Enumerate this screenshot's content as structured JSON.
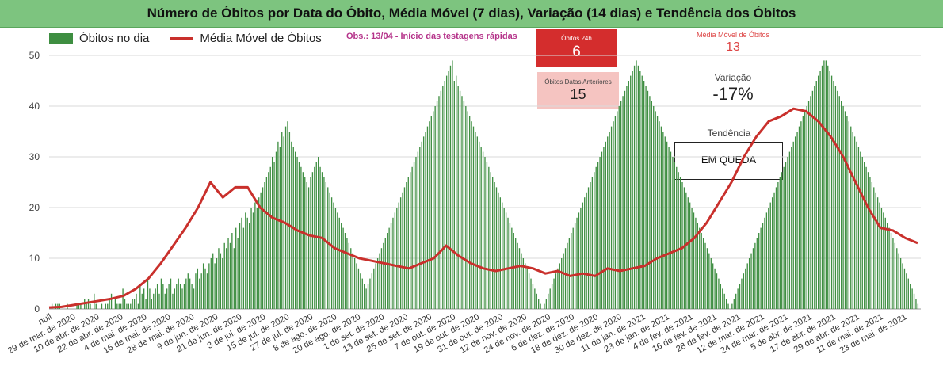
{
  "title": "Número de Óbitos por Data do Óbito, Média Móvel (7 dias), Variação (14 dias) e Tendência dos Óbitos",
  "legend": {
    "bars": "Óbitos no dia",
    "line": "Média Móvel de Óbitos"
  },
  "obs": "Obs.: 13/04 - Início das testagens rápidas",
  "cards": {
    "obitos24h": {
      "label": "Óbitos 24h",
      "value": "6"
    },
    "anteriores": {
      "label": "Óbitos Datas Anteriores",
      "value": "15"
    },
    "media_movel": {
      "label": "Média Móvel de Óbitos",
      "value": "13"
    },
    "variacao": {
      "label": "Variação",
      "value": "-17%"
    },
    "tendencia": {
      "label": "Tendência",
      "value": "EM QUEDA"
    }
  },
  "colors": {
    "bar": "#3e8e41",
    "line": "#c9302c",
    "title_bg": "#7dc47f"
  },
  "chart_data": {
    "type": "bar",
    "title": "Número de Óbitos por Data do Óbito, Média Móvel (7 dias), Variação (14 dias) e Tendência dos Óbitos",
    "xlabel": "",
    "ylabel": "",
    "ylim": [
      0,
      50
    ],
    "yticks": [
      0,
      10,
      20,
      30,
      40,
      50
    ],
    "grid": true,
    "legend_position": "top-left",
    "day_labels": [
      "null",
      "29 de mar. de 2020",
      "10 de abr. de 2020",
      "22 de abr. de 2020",
      "4 de mai. de 2020",
      "16 de mai. de 2020",
      "28 de mai. de 2020",
      "9 de jun. de 2020",
      "21 de jun. de 2020",
      "3 de jul. de 2020",
      "15 de jul. de 2020",
      "27 de jul. de 2020",
      "8 de ago. de 2020",
      "20 de ago. de 2020",
      "1 de set. de 2020",
      "13 de set. de 2020",
      "25 de set. de 2020",
      "7 de out. de 2020",
      "19 de out. de 2020",
      "31 de out. de 2020",
      "12 de nov. de 2020",
      "24 de nov. de 2020",
      "6 de dez. de 2020",
      "18 de dez. de 2020",
      "30 de dez. de 2020",
      "11 de jan. de 2021",
      "23 de jan. de 2021",
      "4 de fev. de 2021",
      "16 de fev. de 2021",
      "28 de fev. de 2021",
      "12 de mar. de 2021",
      "24 de mar. de 2021",
      "5 de abr. de 2021",
      "17 de abr. de 2021",
      "29 de abr. de 2021",
      "11 de mai. de 2021",
      "23 de mai. de 2021"
    ],
    "series": [
      {
        "name": "Óbitos no dia",
        "kind": "bar",
        "values": [
          0,
          1,
          0,
          1,
          1,
          1,
          0,
          0,
          0,
          1,
          0,
          0,
          0,
          0,
          1,
          1,
          1,
          0,
          2,
          1,
          2,
          1,
          0,
          3,
          1,
          0,
          0,
          1,
          0,
          1,
          1,
          2,
          3,
          0,
          2,
          1,
          1,
          1,
          4,
          2,
          1,
          1,
          1,
          2,
          2,
          3,
          1,
          5,
          3,
          4,
          2,
          6,
          4,
          2,
          3,
          4,
          5,
          3,
          6,
          5,
          3,
          4,
          5,
          6,
          3,
          4,
          5,
          6,
          5,
          4,
          5,
          6,
          7,
          6,
          5,
          4,
          7,
          8,
          6,
          7,
          9,
          8,
          7,
          9,
          10,
          11,
          9,
          10,
          12,
          11,
          10,
          13,
          12,
          14,
          13,
          15,
          12,
          16,
          14,
          17,
          18,
          16,
          19,
          18,
          17,
          20,
          19,
          21,
          20,
          22,
          23,
          24,
          25,
          26,
          27,
          28,
          30,
          29,
          31,
          33,
          32,
          35,
          34,
          36,
          37,
          35,
          33,
          32,
          31,
          30,
          29,
          28,
          27,
          26,
          25,
          24,
          26,
          27,
          28,
          29,
          30,
          28,
          27,
          26,
          25,
          24,
          23,
          22,
          21,
          20,
          19,
          18,
          17,
          16,
          15,
          14,
          13,
          12,
          11,
          10,
          9,
          8,
          7,
          6,
          5,
          4,
          5,
          6,
          7,
          8,
          9,
          10,
          11,
          12,
          13,
          14,
          15,
          16,
          17,
          18,
          19,
          20,
          21,
          22,
          23,
          24,
          25,
          26,
          27,
          28,
          29,
          30,
          31,
          32,
          33,
          34,
          35,
          36,
          37,
          38,
          39,
          40,
          41,
          42,
          43,
          44,
          45,
          46,
          47,
          48,
          49,
          45,
          46,
          44,
          43,
          42,
          41,
          40,
          39,
          38,
          37,
          36,
          35,
          34,
          33,
          32,
          31,
          30,
          29,
          28,
          27,
          26,
          25,
          24,
          23,
          22,
          21,
          20,
          19,
          18,
          17,
          16,
          15,
          14,
          13,
          12,
          11,
          10,
          9,
          8,
          7,
          6,
          5,
          4,
          3,
          2,
          1,
          0,
          1,
          2,
          3,
          4,
          5,
          6,
          7,
          8,
          9,
          10,
          11,
          12,
          13,
          14,
          15,
          16,
          17,
          18,
          19,
          20,
          21,
          22,
          23,
          24,
          25,
          26,
          27,
          28,
          29,
          30,
          31,
          32,
          33,
          34,
          35,
          36,
          37,
          38,
          39,
          40,
          41,
          42,
          43,
          44,
          45,
          46,
          47,
          48,
          49,
          48,
          47,
          46,
          45,
          44,
          43,
          42,
          41,
          40,
          39,
          38,
          37,
          36,
          35,
          34,
          33,
          32,
          31,
          30,
          29,
          28,
          27,
          26,
          25,
          24,
          23,
          22,
          21,
          20,
          19,
          18,
          17,
          16,
          15,
          14,
          13,
          12,
          11,
          10,
          9,
          8,
          7,
          6,
          5,
          4,
          3,
          2,
          1,
          0,
          1,
          2,
          3,
          4,
          5,
          6,
          7,
          8,
          9,
          10,
          11,
          12,
          13,
          14,
          15,
          16,
          17,
          18,
          19,
          20,
          21,
          22,
          23,
          24,
          25,
          26,
          27,
          28,
          29,
          30,
          31,
          32,
          33,
          34,
          35,
          36,
          37,
          38,
          39,
          40,
          41,
          42,
          43,
          44,
          45,
          46,
          47,
          48,
          49,
          49,
          48,
          47,
          46,
          45,
          44,
          43,
          42,
          41,
          40,
          39,
          38,
          37,
          36,
          35,
          34,
          33,
          32,
          31,
          30,
          29,
          28,
          27,
          26,
          25,
          24,
          23,
          22,
          21,
          20,
          19,
          18,
          17,
          16,
          15,
          14,
          13,
          12,
          11,
          10,
          9,
          8,
          7,
          6,
          5,
          4,
          3,
          2,
          1,
          0
        ]
      },
      {
        "name": "Média Móvel de Óbitos",
        "kind": "line",
        "points": [
          [
            0,
            0.3
          ],
          [
            12,
            0.4
          ],
          [
            24,
            0.8
          ],
          [
            36,
            1.2
          ],
          [
            48,
            1.6
          ],
          [
            60,
            2.0
          ],
          [
            72,
            2.6
          ],
          [
            84,
            4.0
          ],
          [
            96,
            6.0
          ],
          [
            108,
            9.0
          ],
          [
            120,
            12.5
          ],
          [
            132,
            16.0
          ],
          [
            144,
            20.0
          ],
          [
            156,
            25.0
          ],
          [
            168,
            22.0
          ],
          [
            180,
            24.0
          ],
          [
            192,
            24.0
          ],
          [
            204,
            20.0
          ],
          [
            216,
            18.0
          ],
          [
            228,
            17.0
          ],
          [
            240,
            15.5
          ],
          [
            252,
            14.5
          ],
          [
            264,
            14.0
          ],
          [
            276,
            12.0
          ],
          [
            288,
            11.0
          ],
          [
            300,
            10.0
          ],
          [
            312,
            9.5
          ],
          [
            324,
            9.0
          ],
          [
            336,
            8.5
          ],
          [
            348,
            8.0
          ],
          [
            360,
            9.0
          ],
          [
            372,
            10.0
          ],
          [
            384,
            12.5
          ],
          [
            396,
            10.5
          ],
          [
            408,
            9.0
          ],
          [
            420,
            8.0
          ],
          [
            432,
            7.5
          ],
          [
            444,
            8.0
          ],
          [
            456,
            8.5
          ],
          [
            468,
            8.0
          ],
          [
            480,
            7.0
          ],
          [
            492,
            7.5
          ],
          [
            504,
            6.5
          ],
          [
            516,
            7.0
          ],
          [
            528,
            6.5
          ],
          [
            540,
            8.0
          ],
          [
            552,
            7.5
          ],
          [
            564,
            8.0
          ],
          [
            576,
            8.5
          ],
          [
            588,
            10.0
          ],
          [
            600,
            11.0
          ],
          [
            612,
            12.0
          ],
          [
            624,
            14.0
          ],
          [
            636,
            17.0
          ],
          [
            648,
            21.0
          ],
          [
            660,
            25.0
          ],
          [
            672,
            30.0
          ],
          [
            684,
            34.0
          ],
          [
            696,
            37.0
          ],
          [
            708,
            38.0
          ],
          [
            720,
            39.5
          ],
          [
            732,
            39.0
          ],
          [
            744,
            37.0
          ],
          [
            756,
            34.0
          ],
          [
            768,
            30.0
          ],
          [
            780,
            25.0
          ],
          [
            792,
            20.0
          ],
          [
            804,
            16.0
          ],
          [
            816,
            15.5
          ],
          [
            828,
            14.0
          ],
          [
            840,
            13.0
          ]
        ]
      }
    ]
  }
}
